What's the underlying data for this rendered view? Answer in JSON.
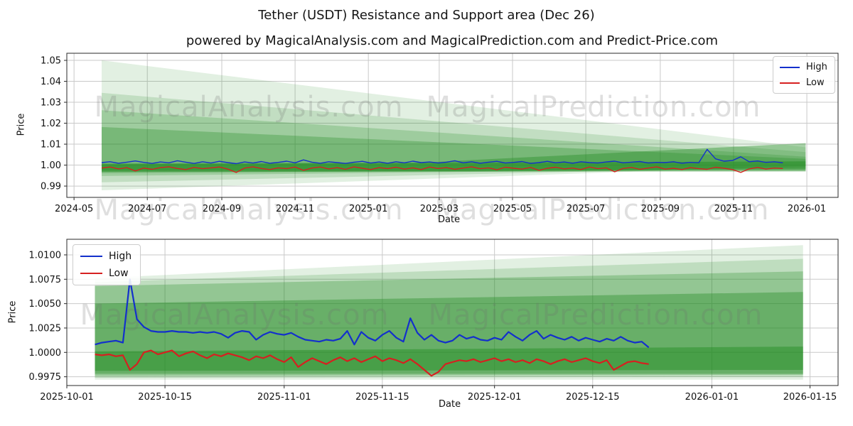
{
  "title": "Tether (USDT) Resistance and Support area (Dec 26)",
  "subtitle": "powered by MagicalAnalysis.com and MagicalPrediction.com and Predict-Price.com",
  "watermarks": [
    "MagicalAnalysis.com",
    "MagicalPrediction.com"
  ],
  "colors": {
    "high": "#1330cc",
    "low": "#d62020",
    "band_green": "#228B22",
    "grid": "#c9c9c9",
    "spine": "#2a2a2a",
    "text": "#111111",
    "watermark": "rgba(110,110,110,0.22)"
  },
  "chart_data": [
    {
      "type": "line",
      "title": "Tether (USDT) Resistance and Support area (Dec 26)",
      "xlabel": "Date",
      "ylabel": "Price",
      "grid": true,
      "legend_position": "upper right",
      "x_epoch": "2024-05-01",
      "xlim_days": [
        -6,
        636
      ],
      "ylim": [
        0.9846,
        1.0534
      ],
      "x_ticks": [
        {
          "day": 0,
          "label": "2024-05"
        },
        {
          "day": 61,
          "label": "2024-07"
        },
        {
          "day": 123,
          "label": "2024-09"
        },
        {
          "day": 184,
          "label": "2024-11"
        },
        {
          "day": 245,
          "label": "2025-01"
        },
        {
          "day": 304,
          "label": "2025-03"
        },
        {
          "day": 365,
          "label": "2025-05"
        },
        {
          "day": 426,
          "label": "2025-07"
        },
        {
          "day": 488,
          "label": "2025-09"
        },
        {
          "day": 549,
          "label": "2025-11"
        },
        {
          "day": 610,
          "label": "2026-01"
        }
      ],
      "y_ticks": [
        {
          "v": 0.99,
          "label": "0.99"
        },
        {
          "v": 1.0,
          "label": "1.00"
        },
        {
          "v": 1.01,
          "label": "1.01"
        },
        {
          "v": 1.02,
          "label": "1.02"
        },
        {
          "v": 1.03,
          "label": "1.03"
        },
        {
          "v": 1.04,
          "label": "1.04"
        },
        {
          "v": 1.05,
          "label": "1.05"
        }
      ],
      "days": [
        23,
        30,
        37,
        44,
        51,
        58,
        65,
        72,
        79,
        86,
        93,
        100,
        107,
        114,
        121,
        128,
        135,
        142,
        149,
        156,
        163,
        170,
        177,
        184,
        191,
        198,
        205,
        212,
        219,
        226,
        233,
        240,
        247,
        254,
        261,
        268,
        275,
        282,
        289,
        296,
        303,
        310,
        317,
        324,
        331,
        338,
        345,
        352,
        359,
        366,
        373,
        380,
        387,
        394,
        401,
        408,
        415,
        422,
        429,
        436,
        443,
        450,
        457,
        464,
        471,
        478,
        485,
        492,
        499,
        506,
        513,
        520,
        527,
        534,
        541,
        548,
        555,
        562,
        569,
        576,
        583,
        590
      ],
      "series": [
        {
          "name": "High",
          "color": "#1330cc",
          "values": [
            1.0012,
            1.0016,
            1.0009,
            1.0014,
            1.002,
            1.0013,
            1.0008,
            1.0015,
            1.0011,
            1.0021,
            1.0014,
            1.0008,
            1.0016,
            1.001,
            1.0018,
            1.0012,
            1.0007,
            1.0015,
            1.001,
            1.0017,
            1.0009,
            1.0013,
            1.0019,
            1.0011,
            1.0025,
            1.0014,
            1.0009,
            1.0016,
            1.0012,
            1.0008,
            1.0014,
            1.0018,
            1.001,
            1.0015,
            1.0009,
            1.0016,
            1.0011,
            1.0019,
            1.0012,
            1.0015,
            1.001,
            1.0014,
            1.0021,
            1.0011,
            1.0016,
            1.0009,
            1.0014,
            1.0018,
            1.001,
            1.0013,
            1.0017,
            1.0008,
            1.0012,
            1.0018,
            1.0011,
            1.0015,
            1.0009,
            1.0016,
            1.0012,
            1.001,
            1.0015,
            1.0019,
            1.0011,
            1.0014,
            1.0017,
            1.001,
            1.0013,
            1.0012,
            1.0016,
            1.0009,
            1.0013,
            1.0011,
            1.0075,
            1.003,
            1.0019,
            1.0022,
            1.004,
            1.0016,
            1.002,
            1.0013,
            1.0016,
            1.0011
          ]
        },
        {
          "name": "Low",
          "color": "#d62020",
          "values": [
            0.9986,
            0.9991,
            0.9982,
            0.9988,
            0.9972,
            0.9986,
            0.998,
            0.9988,
            0.9992,
            0.9984,
            0.9979,
            0.9989,
            0.9983,
            0.9987,
            0.9991,
            0.9981,
            0.9965,
            0.9986,
            0.9992,
            0.9984,
            0.9979,
            0.9987,
            0.9983,
            0.9991,
            0.9975,
            0.9986,
            0.9991,
            0.9982,
            0.9988,
            0.998,
            0.9992,
            0.9985,
            0.9979,
            0.9988,
            0.9983,
            0.999,
            0.9981,
            0.9987,
            0.9979,
            0.9991,
            0.9984,
            0.9988,
            0.998,
            0.9986,
            0.9992,
            0.9983,
            0.9987,
            0.9978,
            0.999,
            0.9985,
            0.9981,
            0.9989,
            0.9975,
            0.9985,
            0.999,
            0.9982,
            0.9986,
            0.9979,
            0.9991,
            0.9983,
            0.9987,
            0.9968,
            0.9984,
            0.9989,
            0.998,
            0.9986,
            0.9992,
            0.9981,
            0.9985,
            0.9979,
            0.9988,
            0.9983,
            0.998,
            0.999,
            0.9985,
            0.9979,
            0.9965,
            0.9982,
            0.9989,
            0.9981,
            0.9986,
            0.9984
          ]
        }
      ],
      "bands": [
        {
          "alpha": 0.13,
          "pts": [
            [
              23,
              1.05
            ],
            [
              609,
              1.0085
            ],
            [
              609,
              0.9998
            ],
            [
              23,
              0.988
            ]
          ]
        },
        {
          "alpha": 0.17,
          "pts": [
            [
              23,
              1.0345
            ],
            [
              609,
              1.0062
            ],
            [
              609,
              0.9992
            ],
            [
              23,
              0.9918
            ]
          ]
        },
        {
          "alpha": 0.22,
          "pts": [
            [
              23,
              1.0262
            ],
            [
              609,
              1.004
            ],
            [
              609,
              0.9986
            ],
            [
              23,
              0.9948
            ]
          ]
        },
        {
          "alpha": 0.3,
          "pts": [
            [
              23,
              1.0182
            ],
            [
              609,
              1.003
            ],
            [
              609,
              0.9981
            ],
            [
              23,
              0.9962
            ]
          ]
        },
        {
          "alpha": 0.4,
          "pts": [
            [
              23,
              1.0008
            ],
            [
              290,
              1.0012
            ],
            [
              609,
              1.0105
            ],
            [
              609,
              0.9976
            ],
            [
              290,
              0.9972
            ],
            [
              23,
              0.9974
            ]
          ]
        },
        {
          "alpha": 0.5,
          "pts": [
            [
              23,
              1.0004
            ],
            [
              609,
              1.0018
            ],
            [
              609,
              0.997
            ],
            [
              23,
              0.9968
            ]
          ]
        }
      ]
    },
    {
      "type": "line",
      "title": "",
      "xlabel": "Date",
      "ylabel": "Price",
      "grid": true,
      "legend_position": "upper left",
      "x_epoch": "2025-10-01",
      "xlim_days": [
        0,
        110
      ],
      "ylim": [
        0.9966,
        1.0116
      ],
      "x_ticks": [
        {
          "day": 0,
          "label": "2025-10-01"
        },
        {
          "day": 14,
          "label": "2025-10-15"
        },
        {
          "day": 31,
          "label": "2025-11-01"
        },
        {
          "day": 45,
          "label": "2025-11-15"
        },
        {
          "day": 61,
          "label": "2025-12-01"
        },
        {
          "day": 75,
          "label": "2025-12-15"
        },
        {
          "day": 92,
          "label": "2026-01-01"
        },
        {
          "day": 106,
          "label": "2026-01-15"
        }
      ],
      "y_ticks": [
        {
          "v": 0.9975,
          "label": "0.9975"
        },
        {
          "v": 1.0,
          "label": "1.0000"
        },
        {
          "v": 1.0025,
          "label": "1.0025"
        },
        {
          "v": 1.005,
          "label": "1.0050"
        },
        {
          "v": 1.0075,
          "label": "1.0075"
        },
        {
          "v": 1.01,
          "label": "1.0100"
        }
      ],
      "days": [
        4,
        5,
        6,
        7,
        8,
        9,
        10,
        11,
        12,
        13,
        14,
        15,
        16,
        17,
        18,
        19,
        20,
        21,
        22,
        23,
        24,
        25,
        26,
        27,
        28,
        29,
        30,
        31,
        32,
        33,
        34,
        35,
        36,
        37,
        38,
        39,
        40,
        41,
        42,
        43,
        44,
        45,
        46,
        47,
        48,
        49,
        50,
        51,
        52,
        53,
        54,
        55,
        56,
        57,
        58,
        59,
        60,
        61,
        62,
        63,
        64,
        65,
        66,
        67,
        68,
        69,
        70,
        71,
        72,
        73,
        74,
        75,
        76,
        77,
        78,
        79,
        80,
        81,
        82,
        83
      ],
      "series": [
        {
          "name": "High",
          "color": "#1330cc",
          "values": [
            1.0008,
            1.001,
            1.0011,
            1.0012,
            1.001,
            1.0075,
            1.0034,
            1.0026,
            1.0022,
            1.0021,
            1.0021,
            1.0022,
            1.0021,
            1.0021,
            1.002,
            1.0021,
            1.002,
            1.0021,
            1.0019,
            1.0015,
            1.002,
            1.0022,
            1.0021,
            1.0013,
            1.0018,
            1.0021,
            1.0019,
            1.0018,
            1.002,
            1.0016,
            1.0013,
            1.0012,
            1.0011,
            1.0013,
            1.0012,
            1.0014,
            1.0022,
            1.0008,
            1.0021,
            1.0015,
            1.0012,
            1.0018,
            1.0022,
            1.0015,
            1.0011,
            1.0035,
            1.002,
            1.0013,
            1.0018,
            1.0012,
            1.001,
            1.0012,
            1.0018,
            1.0014,
            1.0016,
            1.0013,
            1.0012,
            1.0015,
            1.0013,
            1.0021,
            1.0016,
            1.0012,
            1.0018,
            1.0022,
            1.0014,
            1.0018,
            1.0015,
            1.0013,
            1.0016,
            1.0012,
            1.0015,
            1.0013,
            1.0011,
            1.0014,
            1.0012,
            1.0016,
            1.0012,
            1.001,
            1.0011,
            1.0005
          ]
        },
        {
          "name": "Low",
          "color": "#d62020",
          "values": [
            0.9998,
            0.9997,
            0.9998,
            0.9996,
            0.9997,
            0.9982,
            0.9988,
            1.0,
            1.0002,
            0.9998,
            1.0,
            1.0002,
            0.9996,
            0.9999,
            1.0001,
            0.9997,
            0.9994,
            0.9998,
            0.9996,
            0.9999,
            0.9997,
            0.9995,
            0.9992,
            0.9996,
            0.9994,
            0.9997,
            0.9993,
            0.999,
            0.9995,
            0.9985,
            0.999,
            0.9994,
            0.9991,
            0.9988,
            0.9992,
            0.9995,
            0.9991,
            0.9994,
            0.999,
            0.9993,
            0.9996,
            0.9991,
            0.9994,
            0.9992,
            0.9989,
            0.9993,
            0.9988,
            0.9982,
            0.9976,
            0.998,
            0.9988,
            0.999,
            0.9992,
            0.9991,
            0.9993,
            0.999,
            0.9992,
            0.9994,
            0.9991,
            0.9993,
            0.999,
            0.9992,
            0.9989,
            0.9993,
            0.9991,
            0.9988,
            0.9991,
            0.9993,
            0.999,
            0.9992,
            0.9994,
            0.9991,
            0.9989,
            0.9992,
            0.9982,
            0.9986,
            0.999,
            0.9991,
            0.9989,
            0.9988
          ]
        }
      ],
      "bands": [
        {
          "alpha": 0.13,
          "pts": [
            [
              4,
              1.0076
            ],
            [
              105,
              1.011
            ],
            [
              105,
              0.9972
            ],
            [
              4,
              0.9972
            ]
          ]
        },
        {
          "alpha": 0.18,
          "pts": [
            [
              4,
              1.0072
            ],
            [
              105,
              1.0096
            ],
            [
              105,
              0.9975
            ],
            [
              4,
              0.9974
            ]
          ]
        },
        {
          "alpha": 0.28,
          "pts": [
            [
              4,
              1.0068
            ],
            [
              105,
              1.0083
            ],
            [
              105,
              0.9977
            ],
            [
              4,
              0.9976
            ]
          ]
        },
        {
          "alpha": 0.38,
          "pts": [
            [
              4,
              1.005
            ],
            [
              105,
              1.0062
            ],
            [
              105,
              0.9978
            ],
            [
              4,
              0.9978
            ]
          ]
        },
        {
          "alpha": 0.45,
          "pts": [
            [
              4,
              1.0001
            ],
            [
              105,
              1.0006
            ],
            [
              105,
              0.9982
            ],
            [
              4,
              0.9981
            ]
          ]
        }
      ]
    }
  ]
}
